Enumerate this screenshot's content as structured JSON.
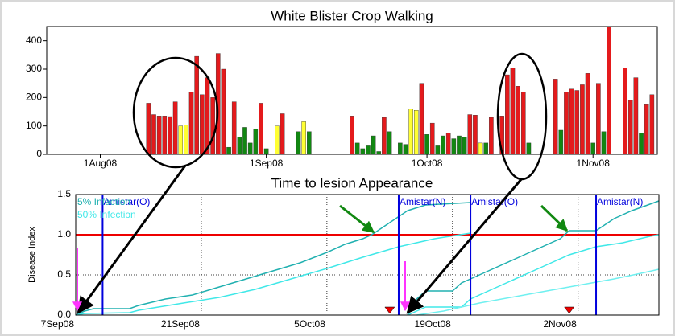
{
  "chart_data": [
    {
      "type": "bar",
      "title": "White Blister Crop Walking",
      "x": [
        "2008-08-10",
        "2008-08-11",
        "2008-08-12",
        "2008-08-13",
        "2008-08-14",
        "2008-08-15",
        "2008-08-16",
        "2008-08-17",
        "2008-08-18",
        "2008-08-19",
        "2008-08-20",
        "2008-08-21",
        "2008-08-22",
        "2008-08-23",
        "2008-08-24",
        "2008-08-25",
        "2008-08-26",
        "2008-08-27",
        "2008-08-28",
        "2008-08-29",
        "2008-08-30",
        "2008-08-31",
        "2008-09-01",
        "2008-09-03",
        "2008-09-04",
        "2008-09-07",
        "2008-09-08",
        "2008-09-09",
        "2008-09-17",
        "2008-09-18",
        "2008-09-19",
        "2008-09-20",
        "2008-09-21",
        "2008-09-22",
        "2008-09-23",
        "2008-09-24",
        "2008-09-26",
        "2008-09-27",
        "2008-09-28",
        "2008-09-29",
        "2008-09-30",
        "2008-10-01",
        "2008-10-02",
        "2008-10-03",
        "2008-10-04",
        "2008-10-05",
        "2008-10-06",
        "2008-10-07",
        "2008-10-08",
        "2008-10-09",
        "2008-10-10",
        "2008-10-11",
        "2008-10-12",
        "2008-10-13",
        "2008-10-15",
        "2008-10-16",
        "2008-10-17",
        "2008-10-18",
        "2008-10-19",
        "2008-10-20",
        "2008-10-25",
        "2008-10-26",
        "2008-10-27",
        "2008-10-28",
        "2008-10-29",
        "2008-10-30",
        "2008-10-31",
        "2008-11-01",
        "2008-11-02",
        "2008-11-03",
        "2008-11-04",
        "2008-11-07",
        "2008-11-08",
        "2008-11-09",
        "2008-11-10",
        "2008-11-11",
        "2008-11-12"
      ],
      "values": [
        180,
        140,
        135,
        135,
        133,
        185,
        100,
        103,
        220,
        345,
        210,
        270,
        200,
        355,
        300,
        25,
        185,
        60,
        95,
        40,
        90,
        180,
        20,
        100,
        143,
        80,
        115,
        80,
        135,
        40,
        20,
        30,
        65,
        10,
        130,
        80,
        40,
        35,
        160,
        155,
        250,
        70,
        110,
        30,
        65,
        75,
        55,
        65,
        60,
        140,
        138,
        40,
        40,
        130,
        135,
        280,
        305,
        240,
        220,
        40,
        265,
        85,
        220,
        230,
        225,
        245,
        285,
        40,
        250,
        80,
        470,
        305,
        190,
        270,
        75,
        175,
        210
      ],
      "colors": [
        "#e41a1c",
        "#e41a1c",
        "#e41a1c",
        "#e41a1c",
        "#e41a1c",
        "#e41a1c",
        "#ffff33",
        "#ffff33",
        "#e41a1c",
        "#e41a1c",
        "#e41a1c",
        "#e41a1c",
        "#e41a1c",
        "#e41a1c",
        "#e41a1c",
        "#118811",
        "#e41a1c",
        "#118811",
        "#118811",
        "#118811",
        "#118811",
        "#e41a1c",
        "#118811",
        "#ffff33",
        "#e41a1c",
        "#118811",
        "#ffff33",
        "#118811",
        "#e41a1c",
        "#118811",
        "#118811",
        "#118811",
        "#118811",
        "#118811",
        "#e41a1c",
        "#118811",
        "#118811",
        "#118811",
        "#ffff33",
        "#ffff33",
        "#e41a1c",
        "#118811",
        "#e41a1c",
        "#118811",
        "#118811",
        "#e41a1c",
        "#118811",
        "#118811",
        "#118811",
        "#e41a1c",
        "#e41a1c",
        "#ffff33",
        "#118811",
        "#e41a1c",
        "#e41a1c",
        "#e41a1c",
        "#e41a1c",
        "#e41a1c",
        "#e41a1c",
        "#118811",
        "#e41a1c",
        "#118811",
        "#e41a1c",
        "#e41a1c",
        "#e41a1c",
        "#e41a1c",
        "#e41a1c",
        "#118811",
        "#e41a1c",
        "#118811",
        "#e41a1c",
        "#e41a1c",
        "#e41a1c",
        "#e41a1c",
        "#118811",
        "#e41a1c",
        "#e41a1c"
      ],
      "xlim": [
        "2008-07-22",
        "2008-11-13"
      ],
      "xticks": [
        {
          "value": "2008-08-01",
          "label": "1Aug08"
        },
        {
          "value": "2008-09-01",
          "label": "1Sep08"
        },
        {
          "value": "2008-10-01",
          "label": "1Oct08"
        },
        {
          "value": "2008-11-01",
          "label": "1Nov08"
        }
      ],
      "ylim": [
        0,
        450
      ],
      "yticks": [
        0,
        100,
        200,
        300,
        400
      ]
    },
    {
      "type": "line",
      "title": "Time to lesion Appearance",
      "y_label": "Disease Index",
      "series": [
        {
          "name": "5% Infection",
          "color": "#20b0b0",
          "x": [
            "2008-09-07",
            "2008-09-08",
            "2008-09-09",
            "2008-09-13",
            "2008-09-14",
            "2008-09-17",
            "2008-09-20",
            "2008-09-23",
            "2008-09-26",
            "2008-09-29",
            "2008-10-02",
            "2008-10-05",
            "2008-10-07",
            "2008-10-09",
            "2008-10-10",
            "2008-10-12",
            "2008-10-14",
            "2008-10-16",
            "2008-10-21"
          ],
          "values": [
            0,
            0.05,
            0.08,
            0.08,
            0.12,
            0.2,
            0.25,
            0.35,
            0.45,
            0.55,
            0.65,
            0.78,
            0.88,
            0.95,
            1.0,
            1.15,
            1.3,
            1.37,
            1.4
          ]
        },
        {
          "name": "50% Infection",
          "color": "#40e8e8",
          "x": [
            "2008-09-07",
            "2008-09-08",
            "2008-09-13",
            "2008-09-14",
            "2008-09-19",
            "2008-09-23",
            "2008-09-27",
            "2008-10-01",
            "2008-10-05",
            "2008-10-09",
            "2008-10-13",
            "2008-10-17",
            "2008-10-21"
          ],
          "values": [
            0,
            0.02,
            0.03,
            0.06,
            0.15,
            0.22,
            0.32,
            0.45,
            0.58,
            0.72,
            0.85,
            0.95,
            1.02
          ]
        },
        {
          "color": "#20b0b0",
          "x": [
            "2008-10-14",
            "2008-10-15",
            "2008-10-16",
            "2008-10-19",
            "2008-10-20",
            "2008-10-23",
            "2008-10-26",
            "2008-10-29",
            "2008-10-31",
            "2008-11-01",
            "2008-11-04",
            "2008-11-06",
            "2008-11-08",
            "2008-11-10",
            "2008-11-11"
          ],
          "values": [
            0,
            0.2,
            0.3,
            0.3,
            0.4,
            0.55,
            0.7,
            0.85,
            0.95,
            1.05,
            1.05,
            1.2,
            1.3,
            1.38,
            1.42
          ]
        },
        {
          "color": "#40e8e8",
          "x": [
            "2008-10-14",
            "2008-10-15",
            "2008-10-16",
            "2008-10-20",
            "2008-10-21",
            "2008-10-25",
            "2008-10-29",
            "2008-11-01",
            "2008-11-04",
            "2008-11-07",
            "2008-11-10",
            "2008-11-11"
          ],
          "values": [
            0,
            0.05,
            0.1,
            0.1,
            0.2,
            0.4,
            0.6,
            0.75,
            0.85,
            0.9,
            0.98,
            1.0
          ]
        },
        {
          "color": "#70f0f0",
          "x": [
            "2008-10-15",
            "2008-10-18",
            "2008-10-22",
            "2008-10-27",
            "2008-11-01",
            "2008-11-06",
            "2008-11-09",
            "2008-11-11"
          ],
          "values": [
            0,
            0.05,
            0.15,
            0.25,
            0.35,
            0.45,
            0.52,
            0.57
          ]
        }
      ],
      "events": [
        {
          "x": "2008-09-10",
          "label": "Amistar(O)"
        },
        {
          "x": "2008-10-13",
          "label": "Amistar(N)"
        },
        {
          "x": "2008-10-21",
          "label": "Amistar(O)"
        },
        {
          "x": "2008-11-04",
          "label": "Amistar(N)"
        }
      ],
      "event_color": "#0000dd",
      "threshold": 1.0,
      "threshold_color": "#ee0000",
      "markers": [
        "2008-10-12",
        "2008-11-01"
      ],
      "marker_color": "#ee0000",
      "legend": "upper left",
      "grid": true,
      "xlim": [
        "2008-09-07",
        "2008-11-11"
      ],
      "xticks": [
        {
          "value": "2008-09-07",
          "label": "7Sep08"
        },
        {
          "value": "2008-09-21",
          "label": "21Sep08"
        },
        {
          "value": "2008-10-05",
          "label": "5Oct08"
        },
        {
          "value": "2008-10-19",
          "label": "19Oct08"
        },
        {
          "value": "2008-11-02",
          "label": "2Nov08"
        }
      ],
      "ylim": [
        0,
        1.5
      ],
      "yticks": [
        {
          "value": 0,
          "label": "0.0"
        },
        0.5,
        {
          "value": 1,
          "label": "1.0"
        },
        {
          "value": 1.5,
          "label": "1.5"
        }
      ]
    }
  ]
}
